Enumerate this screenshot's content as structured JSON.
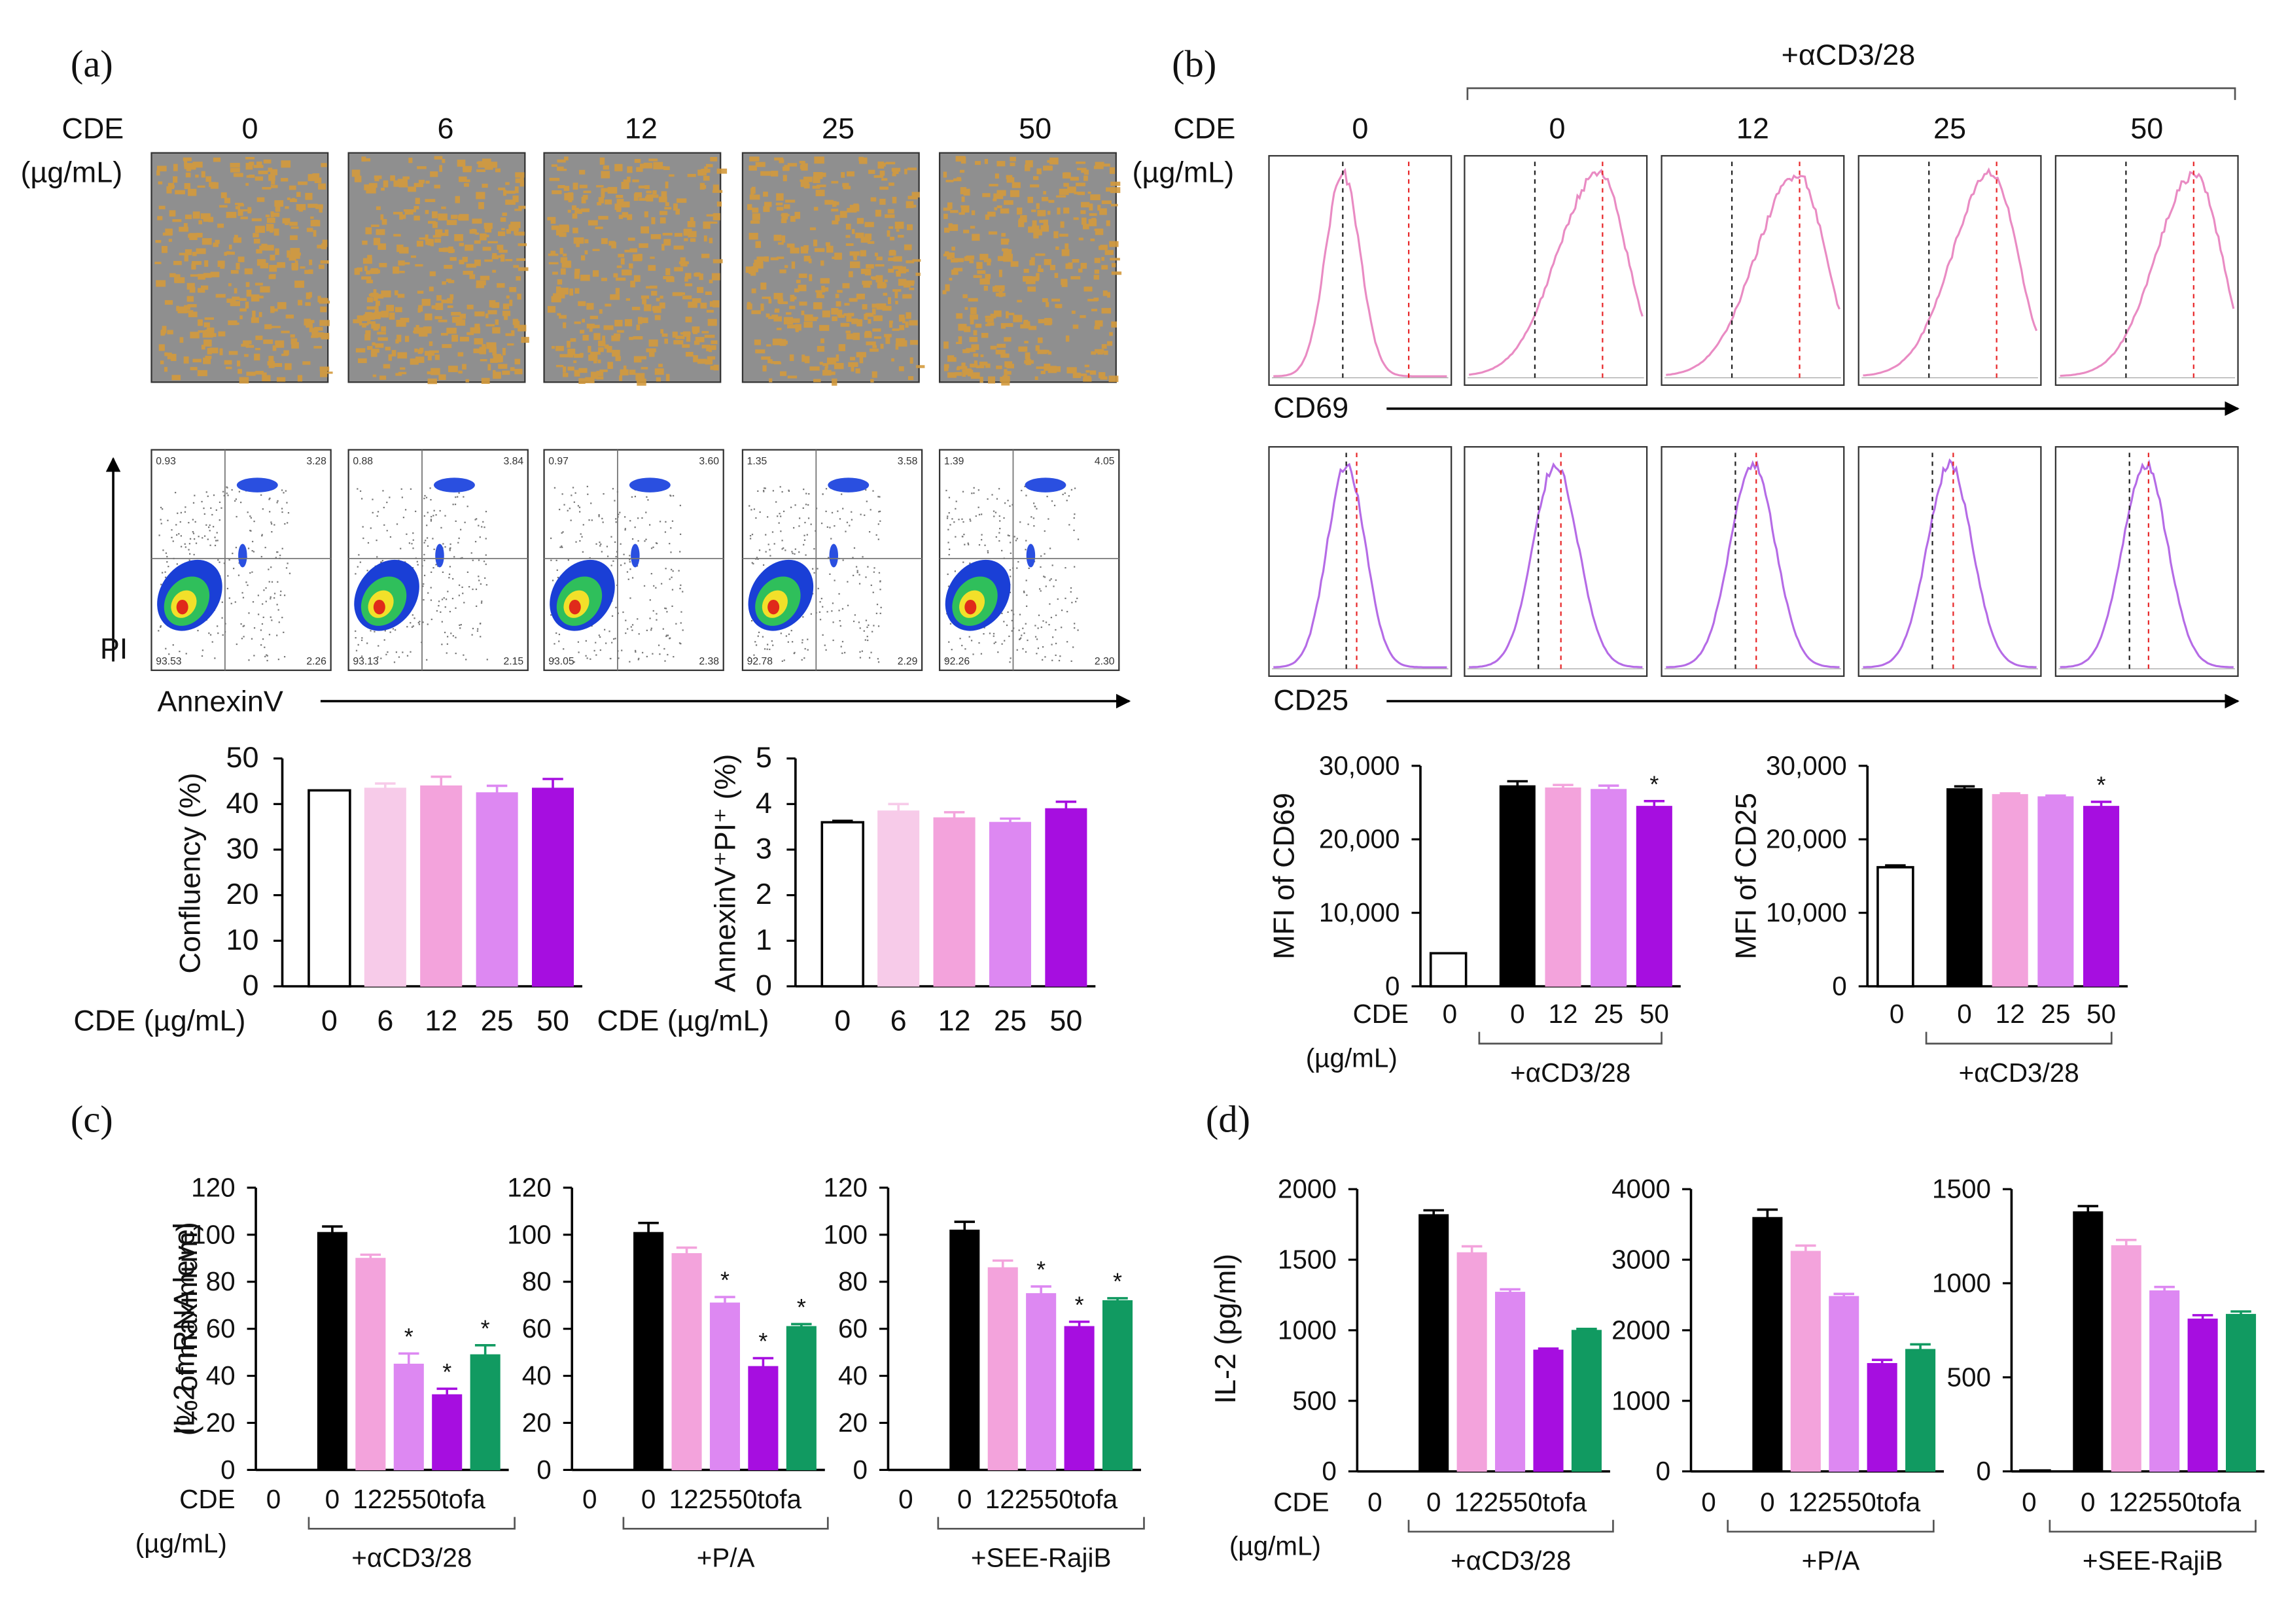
{
  "colors": {
    "white": "#ffffff",
    "black": "#000000",
    "c6": "#f7cbe9",
    "c12": "#f3a3dc",
    "c25": "#dd88f2",
    "c50": "#a60ee0",
    "tofa": "#119a61",
    "cd69": "#e98bc3",
    "cd25": "#b56be6",
    "img_bg": "#8f8f8f",
    "img_fg": "#d49a3c"
  },
  "panel_a": {
    "label": "(a)",
    "cde_label": "CDE",
    "unit_label": "(µg/mL)",
    "conc_headers": [
      "0",
      "6",
      "12",
      "25",
      "50"
    ],
    "micrograph_note": "cell micrographs",
    "axis_y": "PI",
    "axis_x": "AnnexinV",
    "quadrants": [
      {
        "ul": "0.93",
        "ur": "3.28",
        "ll": "93.53",
        "lr": "2.26"
      },
      {
        "ul": "0.88",
        "ur": "3.84",
        "ll": "93.13",
        "lr": "2.15"
      },
      {
        "ul": "0.97",
        "ur": "3.60",
        "ll": "93.05",
        "lr": "2.38"
      },
      {
        "ul": "1.35",
        "ur": "3.58",
        "ll": "92.78",
        "lr": "2.29"
      },
      {
        "ul": "1.39",
        "ur": "4.05",
        "ll": "92.26",
        "lr": "2.30"
      }
    ]
  },
  "panel_b": {
    "label": "(b)",
    "cde_label": "CDE",
    "unit_label": "(µg/mL)",
    "treatment": "+αCD3/28",
    "conc_headers": [
      "0",
      "0",
      "12",
      "25",
      "50"
    ],
    "row1_label": "CD69",
    "row2_label": "CD25",
    "hist_peaks_cd69": [
      0.4,
      0.75,
      0.76,
      0.74,
      0.78
    ],
    "hist_peaks_cd25": [
      0.42,
      0.5,
      0.5,
      0.5,
      0.49
    ]
  },
  "panel_c_label": "(c)",
  "panel_d_label": "(d)",
  "chart_data": [
    {
      "id": "a_confluency",
      "type": "bar",
      "ylabel": "Confluency (%)",
      "ylim": [
        0,
        50
      ],
      "yticks": [
        "0",
        "10",
        "20",
        "30",
        "40",
        "50"
      ],
      "xtitle": "CDE (µg/mL)",
      "categories": [
        "0",
        "6",
        "12",
        "25",
        "50"
      ],
      "values": [
        43,
        43.5,
        44,
        42.5,
        43.5
      ],
      "errors": [
        0,
        1,
        2,
        1.5,
        2
      ],
      "colors": [
        "white",
        "c6",
        "c12",
        "c25",
        "c50"
      ],
      "stars": [
        false,
        false,
        false,
        false,
        false
      ]
    },
    {
      "id": "a_annexin",
      "type": "bar",
      "ylabel": "AnnexinV⁺PI⁺ (%)",
      "ylim": [
        0,
        5
      ],
      "yticks": [
        "0",
        "1",
        "2",
        "3",
        "4",
        "5"
      ],
      "xtitle": "CDE (µg/mL)",
      "categories": [
        "0",
        "6",
        "12",
        "25",
        "50"
      ],
      "values": [
        3.6,
        3.85,
        3.7,
        3.6,
        3.9
      ],
      "errors": [
        0.03,
        0.15,
        0.12,
        0.08,
        0.15
      ],
      "colors": [
        "white",
        "c6",
        "c12",
        "c25",
        "c50"
      ],
      "stars": [
        false,
        false,
        false,
        false,
        false
      ]
    },
    {
      "id": "b_cd69",
      "type": "bar",
      "ylabel": "MFI of CD69",
      "ylim": [
        0,
        30000
      ],
      "yticks": [
        "0",
        "10,000",
        "20,000",
        "30,000"
      ],
      "xtitle": "CDE",
      "xtitle2": "(µg/mL)",
      "group_label": "+αCD3/28",
      "categories": [
        "0",
        "0",
        "12",
        "25",
        "50"
      ],
      "values": [
        4500,
        27300,
        27000,
        26800,
        24500
      ],
      "errors": [
        0,
        600,
        400,
        500,
        700
      ],
      "colors": [
        "white",
        "black",
        "c12",
        "c25",
        "c50"
      ],
      "stars": [
        false,
        false,
        false,
        false,
        true
      ]
    },
    {
      "id": "b_cd25",
      "type": "bar",
      "ylabel": "MFI of CD25",
      "ylim": [
        0,
        30000
      ],
      "yticks": [
        "0",
        "10,000",
        "20,000",
        "30,000"
      ],
      "group_label": "+αCD3/28",
      "categories": [
        "0",
        "0",
        "12",
        "25",
        "50"
      ],
      "values": [
        16200,
        26900,
        26100,
        25800,
        24500
      ],
      "errors": [
        250,
        300,
        150,
        150,
        600
      ],
      "colors": [
        "white",
        "black",
        "c12",
        "c25",
        "c50"
      ],
      "stars": [
        false,
        false,
        false,
        false,
        true
      ]
    },
    {
      "id": "c_acd3",
      "type": "bar",
      "ylabel": "IL-2 mRNA level",
      "ylabel2": "(% of maximum)",
      "ylim": [
        0,
        120
      ],
      "yticks": [
        "0",
        "20",
        "40",
        "60",
        "80",
        "100",
        "120"
      ],
      "xtitle": "CDE",
      "xtitle2": "(µg/mL)",
      "group_label": "+αCD3/28",
      "categories": [
        "0",
        "0",
        "12",
        "25",
        "50",
        "tofa"
      ],
      "values": [
        0,
        101,
        90,
        45,
        32,
        49
      ],
      "errors": [
        0,
        2.5,
        1.5,
        4.5,
        2.5,
        4
      ],
      "colors": [
        "white",
        "black",
        "c12",
        "c25",
        "c50",
        "tofa"
      ],
      "stars": [
        false,
        false,
        false,
        true,
        true,
        true
      ]
    },
    {
      "id": "c_pa",
      "type": "bar",
      "ylim": [
        0,
        120
      ],
      "yticks": [
        "0",
        "20",
        "40",
        "60",
        "80",
        "100",
        "120"
      ],
      "group_label": "+P/A",
      "categories": [
        "0",
        "0",
        "12",
        "25",
        "50",
        "tofa"
      ],
      "values": [
        0,
        101,
        92,
        71,
        44,
        61
      ],
      "errors": [
        0,
        4,
        2.5,
        2.5,
        3.5,
        1
      ],
      "colors": [
        "white",
        "black",
        "c12",
        "c25",
        "c50",
        "tofa"
      ],
      "stars": [
        false,
        false,
        false,
        true,
        true,
        true
      ]
    },
    {
      "id": "c_see",
      "type": "bar",
      "ylim": [
        0,
        120
      ],
      "yticks": [
        "0",
        "20",
        "40",
        "60",
        "80",
        "100",
        "120"
      ],
      "group_label": "+SEE-RajiB",
      "categories": [
        "0",
        "0",
        "12",
        "25",
        "50",
        "tofa"
      ],
      "values": [
        0,
        102,
        86,
        75,
        61,
        72
      ],
      "errors": [
        0,
        3.5,
        3,
        3,
        2,
        1
      ],
      "colors": [
        "white",
        "black",
        "c12",
        "c25",
        "c50",
        "tofa"
      ],
      "stars": [
        false,
        false,
        false,
        true,
        true,
        true
      ]
    },
    {
      "id": "d_acd3",
      "type": "bar",
      "ylabel": "IL-2 (pg/ml)",
      "ylim": [
        0,
        2000
      ],
      "yticks": [
        "0",
        "500",
        "1000",
        "1500",
        "2000"
      ],
      "xtitle": "CDE",
      "xtitle2": "(µg/mL)",
      "group_label": "+αCD3/28",
      "categories": [
        "0",
        "0",
        "12",
        "25",
        "50",
        "tofa"
      ],
      "values": [
        0,
        1820,
        1550,
        1270,
        860,
        1000
      ],
      "errors": [
        0,
        30,
        45,
        20,
        10,
        10
      ],
      "colors": [
        "white",
        "black",
        "c12",
        "c25",
        "c50",
        "tofa"
      ],
      "stars": [
        false,
        false,
        false,
        false,
        false,
        false
      ]
    },
    {
      "id": "d_pa",
      "type": "bar",
      "ylim": [
        0,
        4000
      ],
      "yticks": [
        "0",
        "1000",
        "2000",
        "3000",
        "4000"
      ],
      "group_label": "+P/A",
      "categories": [
        "0",
        "0",
        "12",
        "25",
        "50",
        "tofa"
      ],
      "values": [
        0,
        3600,
        3120,
        2480,
        1530,
        1730
      ],
      "errors": [
        0,
        110,
        80,
        35,
        50,
        70
      ],
      "colors": [
        "white",
        "black",
        "c12",
        "c25",
        "c50",
        "tofa"
      ],
      "stars": [
        false,
        false,
        false,
        false,
        false,
        false
      ]
    },
    {
      "id": "d_see",
      "type": "bar",
      "ylim": [
        0,
        1500
      ],
      "yticks": [
        "0",
        "500",
        "1000",
        "1500"
      ],
      "group_label": "+SEE-RajiB",
      "categories": [
        "0",
        "0",
        "12",
        "25",
        "50",
        "tofa"
      ],
      "values": [
        5,
        1380,
        1200,
        960,
        810,
        835
      ],
      "errors": [
        0,
        30,
        30,
        20,
        20,
        15
      ],
      "colors": [
        "white",
        "black",
        "c12",
        "c25",
        "c50",
        "tofa"
      ],
      "stars": [
        false,
        false,
        false,
        false,
        false,
        false
      ]
    }
  ]
}
